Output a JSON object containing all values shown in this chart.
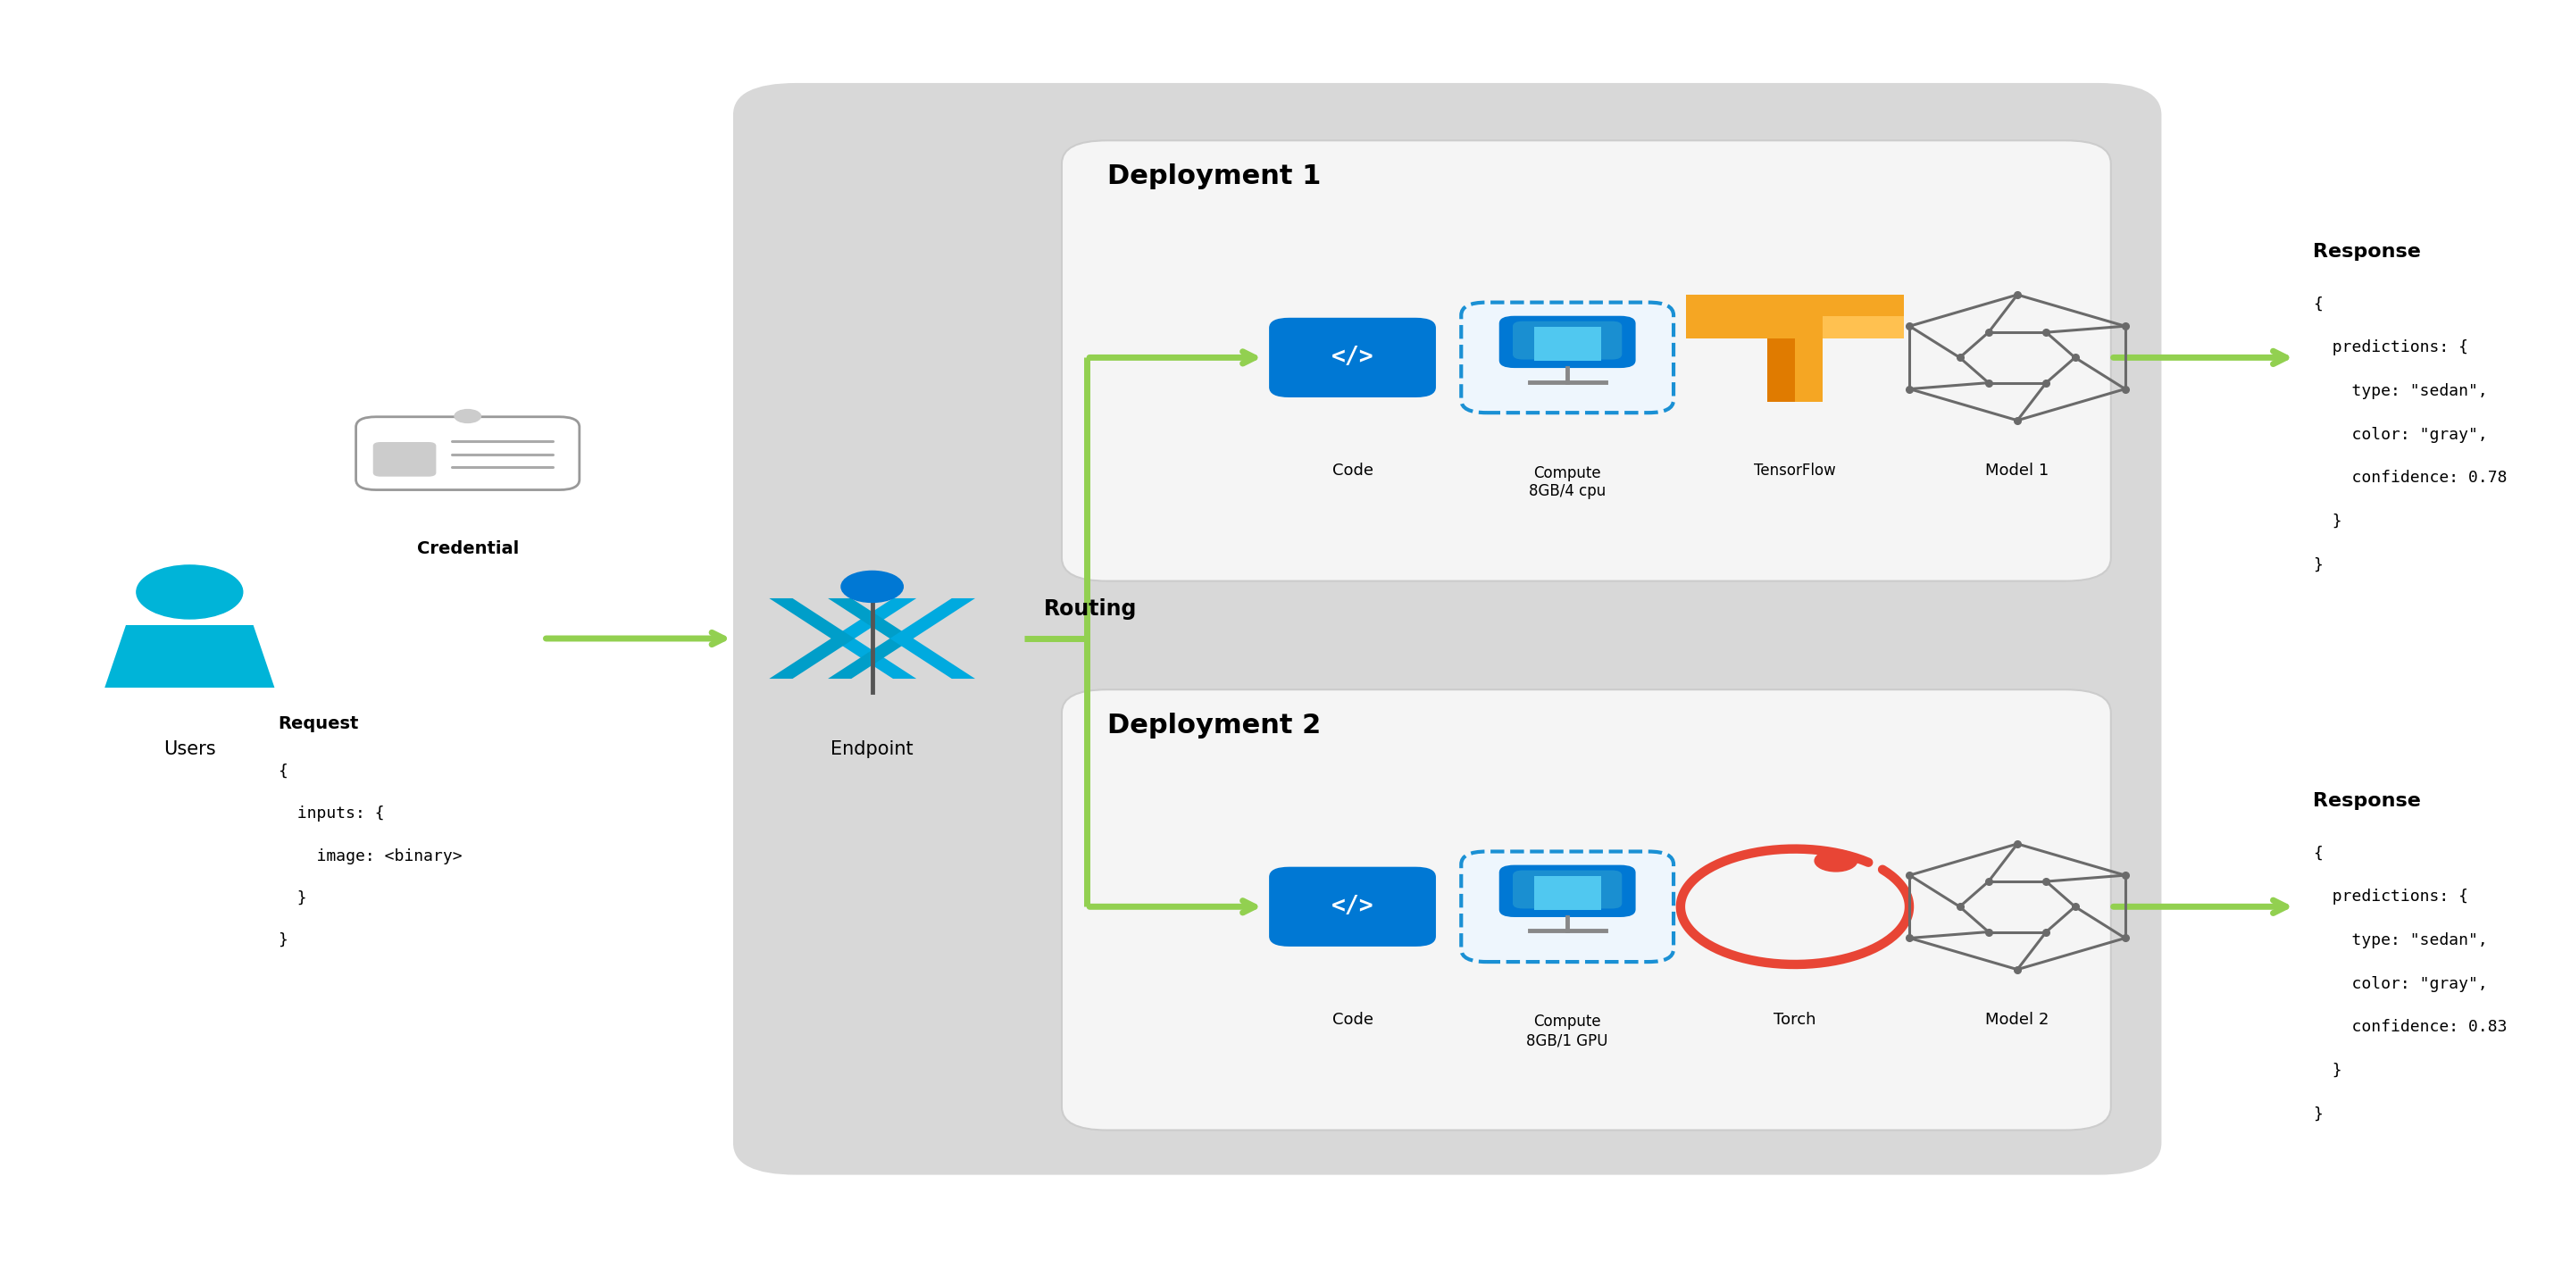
{
  "bg_color": "#ffffff",
  "deploy1_title": "Deployment 1",
  "deploy2_title": "Deployment 2",
  "endpoint_label": "Endpoint",
  "routing_label": "Routing",
  "users_label": "Users",
  "credential_label": "Credential",
  "request_line1": "Request",
  "request_line2": "{",
  "request_line3": "  inputs: {",
  "request_line4": "    image: <binary>",
  "request_line5": "  }",
  "request_line6": "}",
  "response1_label": "Response",
  "response1_lines": [
    "{",
    "  predictions: {",
    "    type: \"sedan\",",
    "    color: \"gray\",",
    "    confidence: 0.78",
    "  }",
    "}"
  ],
  "response2_label": "Response",
  "response2_lines": [
    "{",
    "  predictions: {",
    "    type: \"sedan\",",
    "    color: \"gray\",",
    "    confidence: 0.83",
    "  }",
    "}"
  ],
  "compute1_label": "Compute\n8GB/4 cpu",
  "compute2_label": "Compute\n8GB/1 GPU",
  "code_label": "Code",
  "tensorflow_label": "TensorFlow",
  "torch_label": "Torch",
  "model1_label": "Model 1",
  "model2_label": "Model 2",
  "arrow_color": "#92d050",
  "outer_box_color": "#d8d8d8",
  "deploy_box_color": "#f5f5f5",
  "deploy_box_edge": "#cccccc",
  "blue_color": "#0078d4",
  "light_blue": "#00b4d8",
  "endpoint_blue": "#00a8e0",
  "gray_color": "#808080",
  "orange_tf": "#e8821e",
  "orange_tf2": "#ff9a00",
  "red_torch": "#e84535",
  "text_color": "#000000",
  "monospace_font": "DejaVu Sans Mono"
}
